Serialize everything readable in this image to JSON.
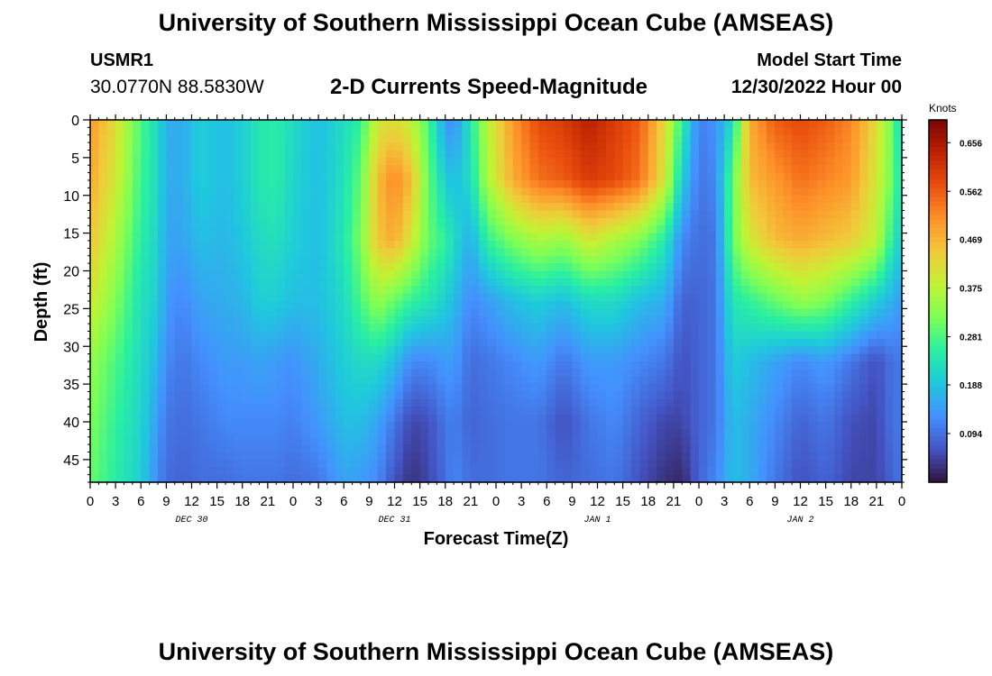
{
  "header": {
    "title": "University of Southern Mississippi Ocean Cube (AMSEAS)",
    "station_id": "USMR1",
    "station_coords": "30.0770N  88.5830W",
    "plot_title": "2-D Currents Speed-Magnitude",
    "model_start_label": "Model Start Time",
    "model_start_value": "12/30/2022 Hour 00"
  },
  "footer": {
    "title": "University of Southern Mississippi Ocean Cube (AMSEAS)"
  },
  "colors": {
    "colormap": [
      "#30123b",
      "#4454c4",
      "#4490fe",
      "#1fc8de",
      "#29efa2",
      "#7dff56",
      "#c1f334",
      "#f1ca3a",
      "#fe922a",
      "#ea4f0d",
      "#be2102",
      "#7a0403"
    ],
    "axis": "#000000"
  },
  "chart_data": {
    "type": "heatmap",
    "title": "2-D Currents Speed-Magnitude",
    "xlabel": "Forecast Time(Z)",
    "ylabel": "Depth (ft)",
    "x_unit": "forecast hour",
    "x_range": [
      0,
      96
    ],
    "y_range": [
      0,
      48
    ],
    "y_inverted": true,
    "x_tick_labels": [
      "0",
      "3",
      "6",
      "9",
      "12",
      "15",
      "18",
      "21",
      "0",
      "3",
      "6",
      "9",
      "12",
      "15",
      "18",
      "21",
      "0",
      "3",
      "6",
      "9",
      "12",
      "15",
      "18",
      "21",
      "0",
      "3",
      "6",
      "9",
      "12",
      "15",
      "18",
      "21",
      "0"
    ],
    "date_labels": [
      {
        "label": "DEC 30",
        "hour": 12
      },
      {
        "label": "DEC 31",
        "hour": 36
      },
      {
        "label": "JAN 1",
        "hour": 60
      },
      {
        "label": "JAN 2",
        "hour": 84
      }
    ],
    "y_ticks": [
      0,
      5,
      10,
      15,
      20,
      25,
      30,
      35,
      40,
      45
    ],
    "colorbar": {
      "label": "Knots",
      "min": 0.0,
      "max": 0.7,
      "tick_labels": [
        "0.656",
        "0.562",
        "0.469",
        "0.375",
        "0.281",
        "0.188",
        "0.094"
      ]
    },
    "depth_levels": [
      0,
      8,
      16,
      24,
      32,
      40,
      48
    ],
    "speed_knots_by_hour": [
      {
        "hour": 0,
        "speeds": [
          0.5,
          0.48,
          0.45,
          0.4,
          0.34,
          0.32,
          0.3
        ]
      },
      {
        "hour": 3,
        "speeds": [
          0.42,
          0.4,
          0.36,
          0.32,
          0.28,
          0.26,
          0.25
        ]
      },
      {
        "hour": 6,
        "speeds": [
          0.28,
          0.27,
          0.25,
          0.23,
          0.22,
          0.21,
          0.2
        ]
      },
      {
        "hour": 8,
        "speeds": [
          0.22,
          0.22,
          0.21,
          0.2,
          0.17,
          0.14,
          0.12
        ]
      },
      {
        "hour": 9,
        "speeds": [
          0.16,
          0.16,
          0.15,
          0.14,
          0.12,
          0.1,
          0.09
        ]
      },
      {
        "hour": 11,
        "speeds": [
          0.16,
          0.16,
          0.15,
          0.12,
          0.1,
          0.09,
          0.08
        ]
      },
      {
        "hour": 13,
        "speeds": [
          0.2,
          0.2,
          0.18,
          0.15,
          0.12,
          0.1,
          0.09
        ]
      },
      {
        "hour": 16,
        "speeds": [
          0.18,
          0.18,
          0.17,
          0.16,
          0.14,
          0.12,
          0.09
        ]
      },
      {
        "hour": 18,
        "speeds": [
          0.2,
          0.2,
          0.19,
          0.17,
          0.14,
          0.12,
          0.1
        ]
      },
      {
        "hour": 20,
        "speeds": [
          0.24,
          0.24,
          0.22,
          0.2,
          0.15,
          0.12,
          0.1
        ]
      },
      {
        "hour": 22,
        "speeds": [
          0.25,
          0.25,
          0.23,
          0.2,
          0.14,
          0.12,
          0.1
        ]
      },
      {
        "hour": 24,
        "speeds": [
          0.22,
          0.21,
          0.2,
          0.18,
          0.13,
          0.11,
          0.09
        ]
      },
      {
        "hour": 27,
        "speeds": [
          0.18,
          0.18,
          0.18,
          0.18,
          0.16,
          0.14,
          0.1
        ]
      },
      {
        "hour": 30,
        "speeds": [
          0.22,
          0.23,
          0.24,
          0.22,
          0.2,
          0.18,
          0.15
        ]
      },
      {
        "hour": 32,
        "speeds": [
          0.26,
          0.3,
          0.32,
          0.28,
          0.22,
          0.18,
          0.14
        ]
      },
      {
        "hour": 34,
        "speeds": [
          0.4,
          0.46,
          0.45,
          0.34,
          0.22,
          0.15,
          0.12
        ]
      },
      {
        "hour": 36,
        "speeds": [
          0.42,
          0.52,
          0.48,
          0.3,
          0.18,
          0.1,
          0.06
        ]
      },
      {
        "hour": 38,
        "speeds": [
          0.38,
          0.46,
          0.4,
          0.26,
          0.12,
          0.05,
          0.03
        ]
      },
      {
        "hour": 40,
        "speeds": [
          0.28,
          0.3,
          0.3,
          0.24,
          0.12,
          0.06,
          0.05
        ]
      },
      {
        "hour": 42,
        "speeds": [
          0.14,
          0.2,
          0.26,
          0.2,
          0.14,
          0.1,
          0.09
        ]
      },
      {
        "hour": 43,
        "speeds": [
          0.12,
          0.18,
          0.22,
          0.18,
          0.14,
          0.11,
          0.12
        ]
      },
      {
        "hour": 45,
        "speeds": [
          0.24,
          0.22,
          0.16,
          0.12,
          0.09,
          0.08,
          0.09
        ]
      },
      {
        "hour": 47,
        "speeds": [
          0.38,
          0.36,
          0.26,
          0.14,
          0.1,
          0.09,
          0.09
        ]
      },
      {
        "hour": 50,
        "speeds": [
          0.5,
          0.48,
          0.32,
          0.18,
          0.12,
          0.1,
          0.1
        ]
      },
      {
        "hour": 53,
        "speeds": [
          0.58,
          0.54,
          0.36,
          0.2,
          0.14,
          0.1,
          0.1
        ]
      },
      {
        "hour": 56,
        "speeds": [
          0.6,
          0.56,
          0.34,
          0.18,
          0.1,
          0.06,
          0.08
        ]
      },
      {
        "hour": 59,
        "speeds": [
          0.64,
          0.6,
          0.4,
          0.22,
          0.14,
          0.1,
          0.09
        ]
      },
      {
        "hour": 62,
        "speeds": [
          0.6,
          0.58,
          0.36,
          0.22,
          0.14,
          0.12,
          0.1
        ]
      },
      {
        "hour": 65,
        "speeds": [
          0.56,
          0.54,
          0.32,
          0.18,
          0.12,
          0.08,
          0.06
        ]
      },
      {
        "hour": 68,
        "speeds": [
          0.42,
          0.4,
          0.24,
          0.16,
          0.1,
          0.05,
          0.03
        ]
      },
      {
        "hour": 70,
        "speeds": [
          0.26,
          0.2,
          0.12,
          0.08,
          0.06,
          0.05,
          0.02
        ]
      },
      {
        "hour": 72,
        "speeds": [
          0.11,
          0.1,
          0.09,
          0.08,
          0.08,
          0.08,
          0.08
        ]
      },
      {
        "hour": 74,
        "speeds": [
          0.13,
          0.12,
          0.1,
          0.1,
          0.1,
          0.1,
          0.12
        ]
      },
      {
        "hour": 76,
        "speeds": [
          0.22,
          0.3,
          0.3,
          0.24,
          0.2,
          0.18,
          0.18
        ]
      },
      {
        "hour": 78,
        "speeds": [
          0.48,
          0.46,
          0.4,
          0.26,
          0.18,
          0.16,
          0.16
        ]
      },
      {
        "hour": 81,
        "speeds": [
          0.56,
          0.5,
          0.46,
          0.3,
          0.15,
          0.12,
          0.1
        ]
      },
      {
        "hour": 84,
        "speeds": [
          0.58,
          0.54,
          0.48,
          0.34,
          0.12,
          0.08,
          0.06
        ]
      },
      {
        "hour": 87,
        "speeds": [
          0.56,
          0.52,
          0.46,
          0.32,
          0.14,
          0.1,
          0.08
        ]
      },
      {
        "hour": 90,
        "speeds": [
          0.52,
          0.5,
          0.44,
          0.26,
          0.1,
          0.06,
          0.05
        ]
      },
      {
        "hour": 93,
        "speeds": [
          0.42,
          0.4,
          0.38,
          0.2,
          0.06,
          0.05,
          0.05
        ]
      },
      {
        "hour": 95,
        "speeds": [
          0.3,
          0.3,
          0.24,
          0.16,
          0.1,
          0.1,
          0.08
        ]
      },
      {
        "hour": 96,
        "speeds": [
          0.2,
          0.22,
          0.2,
          0.14,
          0.1,
          0.1,
          0.1
        ]
      }
    ]
  }
}
